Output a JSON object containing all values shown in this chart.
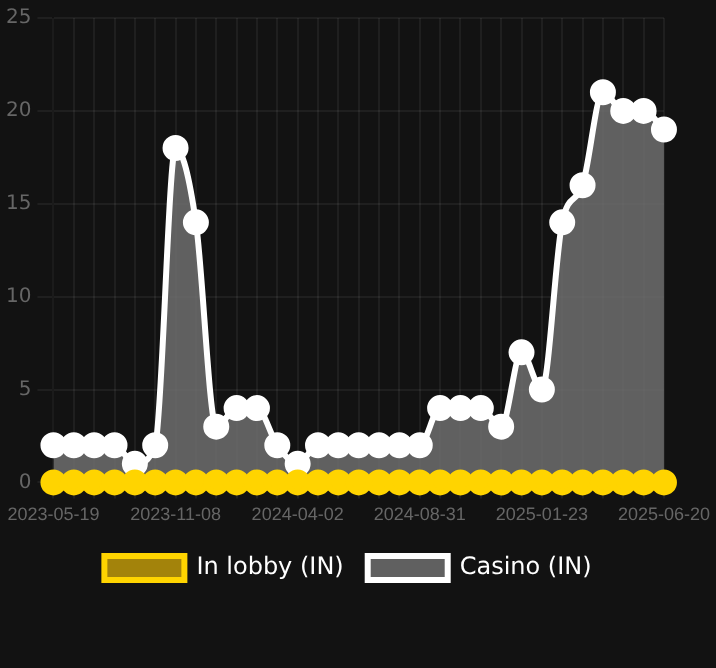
{
  "chart_data": {
    "type": "line",
    "categories": [
      "2023-05-19",
      null,
      null,
      null,
      null,
      null,
      "2023-11-08",
      null,
      null,
      null,
      null,
      null,
      "2024-04-02",
      null,
      null,
      null,
      null,
      null,
      "2024-08-31",
      null,
      null,
      null,
      null,
      null,
      "2025-01-23",
      null,
      null,
      null,
      null,
      null,
      "2025-06-20"
    ],
    "series": [
      {
        "name": "In lobby (IN)",
        "color": "#ffd400",
        "values": [
          0,
          0,
          0,
          0,
          0,
          0,
          0,
          0,
          0,
          0,
          0,
          0,
          0,
          0,
          0,
          0,
          0,
          0,
          0,
          0,
          0,
          0,
          0,
          0,
          0,
          0,
          0,
          0,
          0,
          0,
          0
        ]
      },
      {
        "name": "Casino (IN)",
        "type": "area",
        "color": "#ffffff",
        "values": [
          2,
          2,
          2,
          2,
          1,
          2,
          18,
          14,
          3,
          4,
          4,
          2,
          1,
          2,
          2,
          2,
          2,
          2,
          2,
          4,
          4,
          4,
          3,
          7,
          5,
          14,
          16,
          21,
          20,
          20,
          19
        ]
      }
    ],
    "ylim": [
      0,
      25
    ],
    "yticks": [
      0,
      5,
      10,
      15,
      20,
      25
    ],
    "grid": true,
    "legend": "bottom",
    "marker": "circle"
  }
}
